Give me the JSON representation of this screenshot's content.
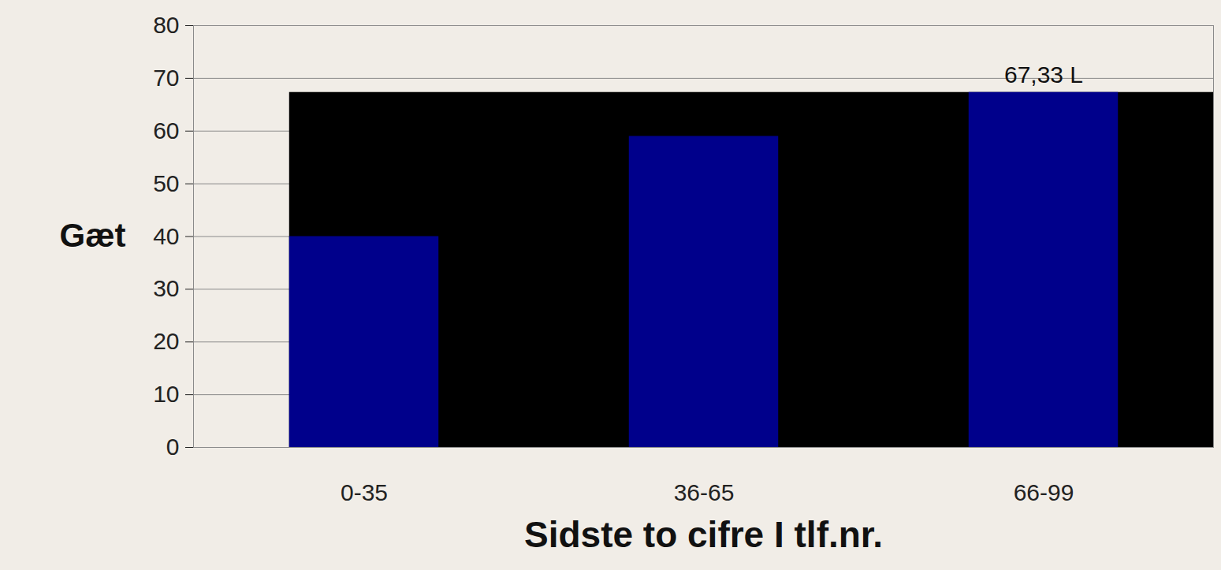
{
  "chart_data": {
    "type": "bar",
    "categories": [
      "0-35",
      "36-65",
      "66-99"
    ],
    "values": [
      40,
      59,
      67.33
    ],
    "color": "#00008b",
    "ylim": [
      0,
      80
    ],
    "yticks": [
      0,
      10,
      20,
      30,
      40,
      50,
      60,
      70,
      80
    ],
    "grid": true,
    "y_label": "Gæt",
    "x_label": "Sidste to cifre I tlf.nr.",
    "annotations": [
      {
        "text": "67,33 L",
        "category": "66-99",
        "value": 67.33
      }
    ]
  }
}
